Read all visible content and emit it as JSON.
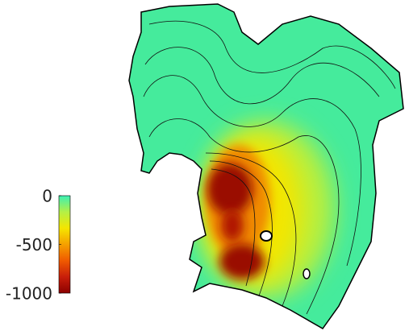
{
  "colorbar": {
    "lim": [
      -1000,
      0
    ],
    "ticks": [
      0,
      -500,
      -1000
    ],
    "colors": [
      "#8b0000",
      "#c81e0a",
      "#f05a00",
      "#f5a000",
      "#f5e600",
      "#b4f046",
      "#3cf0b4"
    ]
  }
}
